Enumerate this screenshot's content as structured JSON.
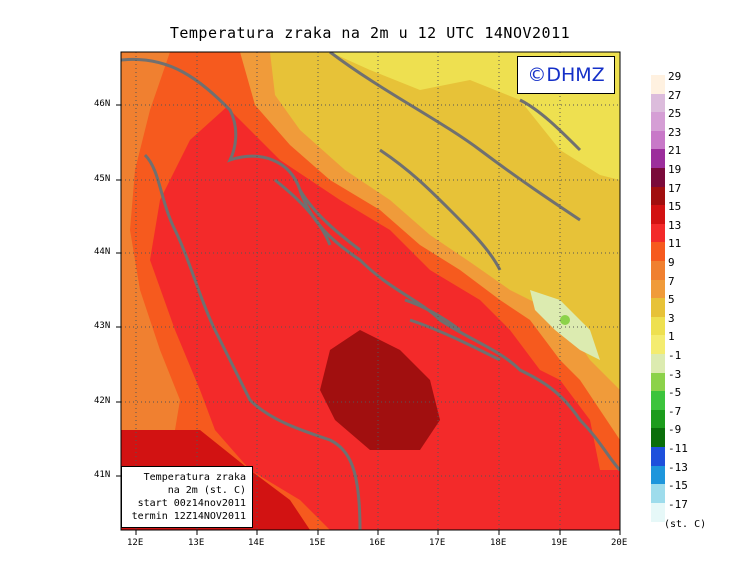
{
  "title": "Temperatura zraka na 2m u 12 UTC 14NOV2011",
  "logo_text": "©DHMZ",
  "info_box": {
    "line1": "Temperatura zraka",
    "line2": "na 2m (st. C)",
    "line3": "start 00z14nov2011",
    "line4": "termin 12Z14NOV2011"
  },
  "x_ticks": [
    "12E",
    "13E",
    "14E",
    "15E",
    "16E",
    "17E",
    "18E",
    "19E",
    "20E"
  ],
  "y_ticks": [
    "46N",
    "45N",
    "44N",
    "43N",
    "42N",
    "41N"
  ],
  "colorbar": {
    "units": "(st. C)",
    "labels": [
      "29",
      "27",
      "25",
      "23",
      "21",
      "19",
      "17",
      "15",
      "13",
      "11",
      "9",
      "7",
      "5",
      "3",
      "1",
      "-1",
      "-3",
      "-5",
      "-7",
      "-9",
      "-11",
      "-13",
      "-15",
      "-17"
    ],
    "colors": [
      "#fff1e0",
      "#dcbcdc",
      "#d59ed5",
      "#c878c8",
      "#9c2e9c",
      "#7a0a3a",
      "#a10f0f",
      "#d21212",
      "#f32a2a",
      "#f65a1e",
      "#f08030",
      "#f09b3a",
      "#e7c238",
      "#eee050",
      "#f4ec70",
      "#dcebb0",
      "#8cd24a",
      "#3cc43c",
      "#1c9c1c",
      "#0a6e0a",
      "#1e50dc",
      "#1e96dc",
      "#9edcec",
      "#e6f8f8"
    ]
  }
}
